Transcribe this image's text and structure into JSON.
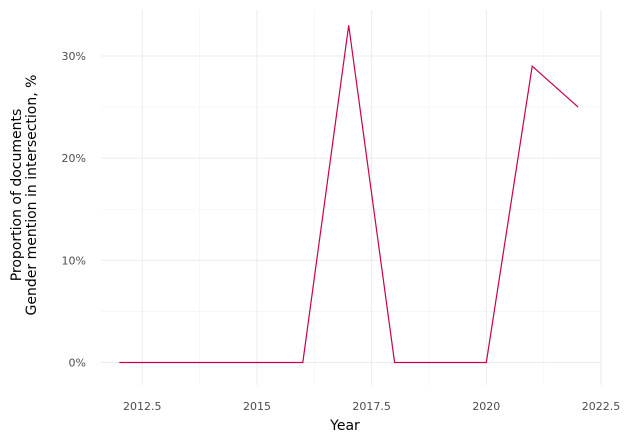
{
  "chart_data": {
    "type": "line",
    "title": "",
    "xlabel": "Year",
    "ylabel_lines": [
      "Proportion of documents",
      "Gender mention in intersection, %"
    ],
    "xlim": [
      2011.6,
      2022.5
    ],
    "ylim": [
      -2.2,
      34.5
    ],
    "x_ticks": [
      2012.5,
      2015,
      2017.5,
      2020,
      2022.5
    ],
    "x_tick_labels": [
      "2012.5",
      "2015",
      "2017.5",
      "2020",
      "2022.5"
    ],
    "y_ticks": [
      0,
      10,
      20,
      30
    ],
    "y_tick_labels": [
      "0%",
      "10%",
      "20%",
      "30%"
    ],
    "grid": true,
    "legend": "none",
    "series": [
      {
        "color": "#c9004f",
        "x": [
          2012,
          2013,
          2014,
          2015,
          2016,
          2017,
          2018,
          2019,
          2020,
          2021,
          2022
        ],
        "y": [
          0,
          0,
          0,
          0,
          0,
          33,
          0,
          0,
          0,
          29,
          25
        ]
      }
    ]
  }
}
